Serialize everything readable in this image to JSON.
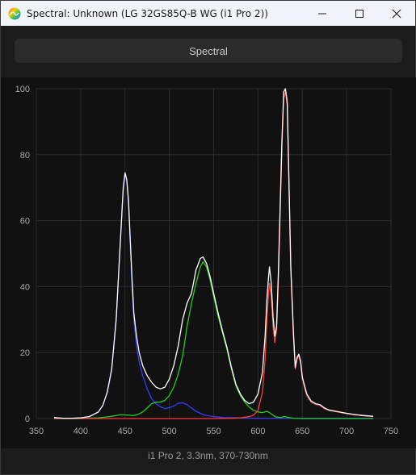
{
  "window": {
    "title": "Spectral: Unknown (LG 32GS85Q-B WG (i1 Pro 2))",
    "icons": {
      "app": "spectral-app-icon",
      "minimize": "minimize-icon",
      "maximize": "maximize-icon",
      "close": "close-icon"
    }
  },
  "tab": {
    "label": "Spectral"
  },
  "caption": "i1 Pro 2, 3.3nm, 370-730nm",
  "colors": {
    "background": "#111111",
    "grid": "#2a2a2a",
    "white": "#ffffff",
    "red": "#ff3b3b",
    "green": "#22cc22",
    "blue": "#3a3aff",
    "tick_text": "#a8a8a8"
  },
  "chart_data": {
    "type": "line",
    "xlabel": "",
    "ylabel": "",
    "xlim": [
      350,
      750
    ],
    "ylim": [
      0,
      100
    ],
    "x_ticks": [
      350,
      400,
      450,
      500,
      550,
      600,
      650,
      700,
      750
    ],
    "y_ticks": [
      0,
      20,
      40,
      60,
      80,
      100
    ],
    "grid": true,
    "series": [
      {
        "color_key": "blue",
        "points": [
          [
            370,
            0.3
          ],
          [
            380,
            0.1
          ],
          [
            390,
            0.1
          ],
          [
            400,
            0.2
          ],
          [
            410,
            0.6
          ],
          [
            420,
            2
          ],
          [
            425,
            4
          ],
          [
            430,
            8
          ],
          [
            435,
            15
          ],
          [
            440,
            30
          ],
          [
            443,
            45
          ],
          [
            446,
            60
          ],
          [
            448,
            70
          ],
          [
            450,
            74
          ],
          [
            452,
            72
          ],
          [
            454,
            65
          ],
          [
            456,
            52
          ],
          [
            458,
            40
          ],
          [
            460,
            30
          ],
          [
            463,
            22
          ],
          [
            466,
            17
          ],
          [
            470,
            13
          ],
          [
            475,
            9
          ],
          [
            480,
            6
          ],
          [
            485,
            4.5
          ],
          [
            490,
            3.6
          ],
          [
            495,
            3
          ],
          [
            500,
            3.3
          ],
          [
            505,
            3.8
          ],
          [
            510,
            4.6
          ],
          [
            515,
            4.8
          ],
          [
            520,
            4.2
          ],
          [
            525,
            3.2
          ],
          [
            530,
            2.2
          ],
          [
            540,
            1
          ],
          [
            550,
            0.6
          ],
          [
            560,
            0.3
          ],
          [
            580,
            0.2
          ],
          [
            600,
            0.1
          ],
          [
            650,
            0.1
          ],
          [
            700,
            0.1
          ],
          [
            730,
            0.1
          ]
        ]
      },
      {
        "color_key": "green",
        "points": [
          [
            370,
            0
          ],
          [
            400,
            0
          ],
          [
            420,
            0.2
          ],
          [
            430,
            0.5
          ],
          [
            440,
            0.9
          ],
          [
            445,
            1.2
          ],
          [
            450,
            1.1
          ],
          [
            455,
            1
          ],
          [
            460,
            0.9
          ],
          [
            465,
            1.3
          ],
          [
            470,
            2
          ],
          [
            475,
            3.2
          ],
          [
            480,
            4.5
          ],
          [
            485,
            5
          ],
          [
            490,
            5
          ],
          [
            495,
            5.5
          ],
          [
            500,
            7
          ],
          [
            505,
            9.5
          ],
          [
            510,
            13.5
          ],
          [
            515,
            19
          ],
          [
            520,
            28
          ],
          [
            525,
            35
          ],
          [
            530,
            41
          ],
          [
            535,
            46
          ],
          [
            538,
            47.5
          ],
          [
            542,
            46
          ],
          [
            546,
            42
          ],
          [
            550,
            37
          ],
          [
            555,
            31
          ],
          [
            560,
            26
          ],
          [
            565,
            21
          ],
          [
            570,
            15
          ],
          [
            575,
            10
          ],
          [
            580,
            7
          ],
          [
            585,
            5
          ],
          [
            590,
            3.5
          ],
          [
            595,
            2.5
          ],
          [
            600,
            2
          ],
          [
            605,
            1.8
          ],
          [
            610,
            2.2
          ],
          [
            613,
            1.8
          ],
          [
            616,
            1.2
          ],
          [
            620,
            0.5
          ],
          [
            625,
            0.3
          ],
          [
            630,
            0.6
          ],
          [
            635,
            0.3
          ],
          [
            640,
            0.1
          ],
          [
            650,
            0
          ],
          [
            730,
            0
          ]
        ]
      },
      {
        "color_key": "red",
        "points": [
          [
            370,
            0
          ],
          [
            550,
            0
          ],
          [
            570,
            0.1
          ],
          [
            580,
            0.2
          ],
          [
            590,
            0.6
          ],
          [
            595,
            1
          ],
          [
            600,
            2.5
          ],
          [
            605,
            8
          ],
          [
            608,
            18
          ],
          [
            610,
            30
          ],
          [
            612,
            38
          ],
          [
            613,
            41
          ],
          [
            615,
            37
          ],
          [
            617,
            28
          ],
          [
            619,
            23
          ],
          [
            621,
            27
          ],
          [
            623,
            42
          ],
          [
            625,
            62
          ],
          [
            627,
            82
          ],
          [
            629,
            97
          ],
          [
            631,
            99
          ],
          [
            633,
            95
          ],
          [
            635,
            70
          ],
          [
            637,
            45
          ],
          [
            640,
            25
          ],
          [
            642,
            15
          ],
          [
            644,
            18
          ],
          [
            646,
            19
          ],
          [
            648,
            17
          ],
          [
            650,
            12
          ],
          [
            655,
            7
          ],
          [
            660,
            5
          ],
          [
            665,
            4.3
          ],
          [
            670,
            4
          ],
          [
            675,
            3
          ],
          [
            680,
            2.5
          ],
          [
            690,
            2
          ],
          [
            700,
            1.5
          ],
          [
            710,
            1.1
          ],
          [
            720,
            0.8
          ],
          [
            730,
            0.6
          ]
        ]
      },
      {
        "color_key": "white",
        "points": [
          [
            370,
            0.3
          ],
          [
            380,
            0.1
          ],
          [
            390,
            0.1
          ],
          [
            400,
            0.2
          ],
          [
            410,
            0.6
          ],
          [
            420,
            2
          ],
          [
            425,
            4
          ],
          [
            430,
            8
          ],
          [
            435,
            15
          ],
          [
            440,
            30
          ],
          [
            443,
            45
          ],
          [
            446,
            60
          ],
          [
            448,
            70
          ],
          [
            450,
            74.5
          ],
          [
            452,
            72.5
          ],
          [
            454,
            66
          ],
          [
            456,
            54
          ],
          [
            458,
            42
          ],
          [
            460,
            32
          ],
          [
            463,
            25
          ],
          [
            466,
            20
          ],
          [
            470,
            16
          ],
          [
            475,
            13
          ],
          [
            480,
            11
          ],
          [
            485,
            9.5
          ],
          [
            490,
            9
          ],
          [
            495,
            9.5
          ],
          [
            500,
            12
          ],
          [
            505,
            16
          ],
          [
            510,
            22
          ],
          [
            515,
            30
          ],
          [
            520,
            35
          ],
          [
            525,
            38
          ],
          [
            530,
            45
          ],
          [
            535,
            48.5
          ],
          [
            538,
            49
          ],
          [
            542,
            47
          ],
          [
            546,
            43
          ],
          [
            550,
            38
          ],
          [
            555,
            32
          ],
          [
            560,
            26.5
          ],
          [
            565,
            21.5
          ],
          [
            570,
            15.5
          ],
          [
            575,
            10.5
          ],
          [
            580,
            7.5
          ],
          [
            585,
            5.5
          ],
          [
            590,
            4.5
          ],
          [
            595,
            5
          ],
          [
            600,
            7.5
          ],
          [
            605,
            14
          ],
          [
            608,
            25
          ],
          [
            610,
            36
          ],
          [
            612,
            43
          ],
          [
            613,
            46
          ],
          [
            615,
            41
          ],
          [
            617,
            31
          ],
          [
            619,
            25
          ],
          [
            621,
            28
          ],
          [
            623,
            44
          ],
          [
            625,
            64
          ],
          [
            627,
            84
          ],
          [
            629,
            99
          ],
          [
            631,
            100
          ],
          [
            633,
            96
          ],
          [
            635,
            71
          ],
          [
            637,
            46
          ],
          [
            640,
            26
          ],
          [
            642,
            15.5
          ],
          [
            644,
            18.5
          ],
          [
            646,
            19.5
          ],
          [
            648,
            17.5
          ],
          [
            650,
            12.5
          ],
          [
            655,
            7.5
          ],
          [
            660,
            5.3
          ],
          [
            665,
            4.5
          ],
          [
            670,
            4.2
          ],
          [
            675,
            3.2
          ],
          [
            680,
            2.6
          ],
          [
            690,
            2.1
          ],
          [
            700,
            1.6
          ],
          [
            710,
            1.2
          ],
          [
            720,
            0.9
          ],
          [
            730,
            0.7
          ]
        ]
      }
    ]
  }
}
